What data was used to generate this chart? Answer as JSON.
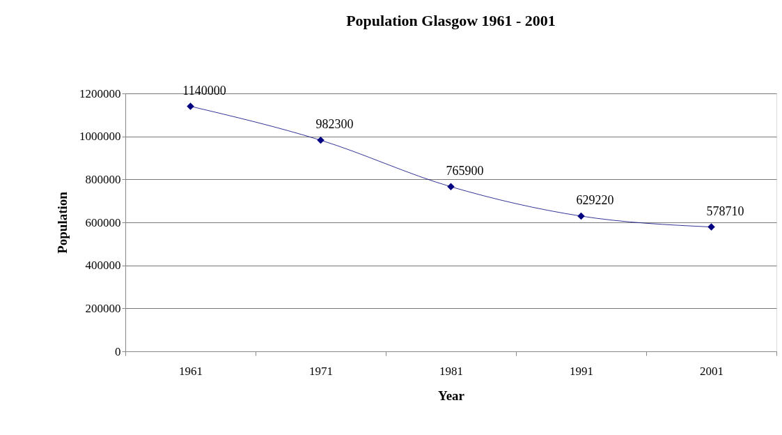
{
  "chart_data": {
    "type": "line",
    "title": "Population Glasgow 1961 - 2001",
    "xlabel": "Year",
    "ylabel": "Population",
    "categories": [
      "1961",
      "1971",
      "1981",
      "1991",
      "2001"
    ],
    "series": [
      {
        "color": "#000080",
        "values": [
          1140000,
          982300,
          765900,
          629220,
          578710
        ]
      }
    ],
    "ylim": [
      0,
      1200000
    ],
    "yticks": [
      0,
      200000,
      400000,
      600000,
      800000,
      1000000,
      1200000
    ],
    "grid": "y",
    "marker": "diamond",
    "line_style": "solid",
    "data_labels": true
  }
}
